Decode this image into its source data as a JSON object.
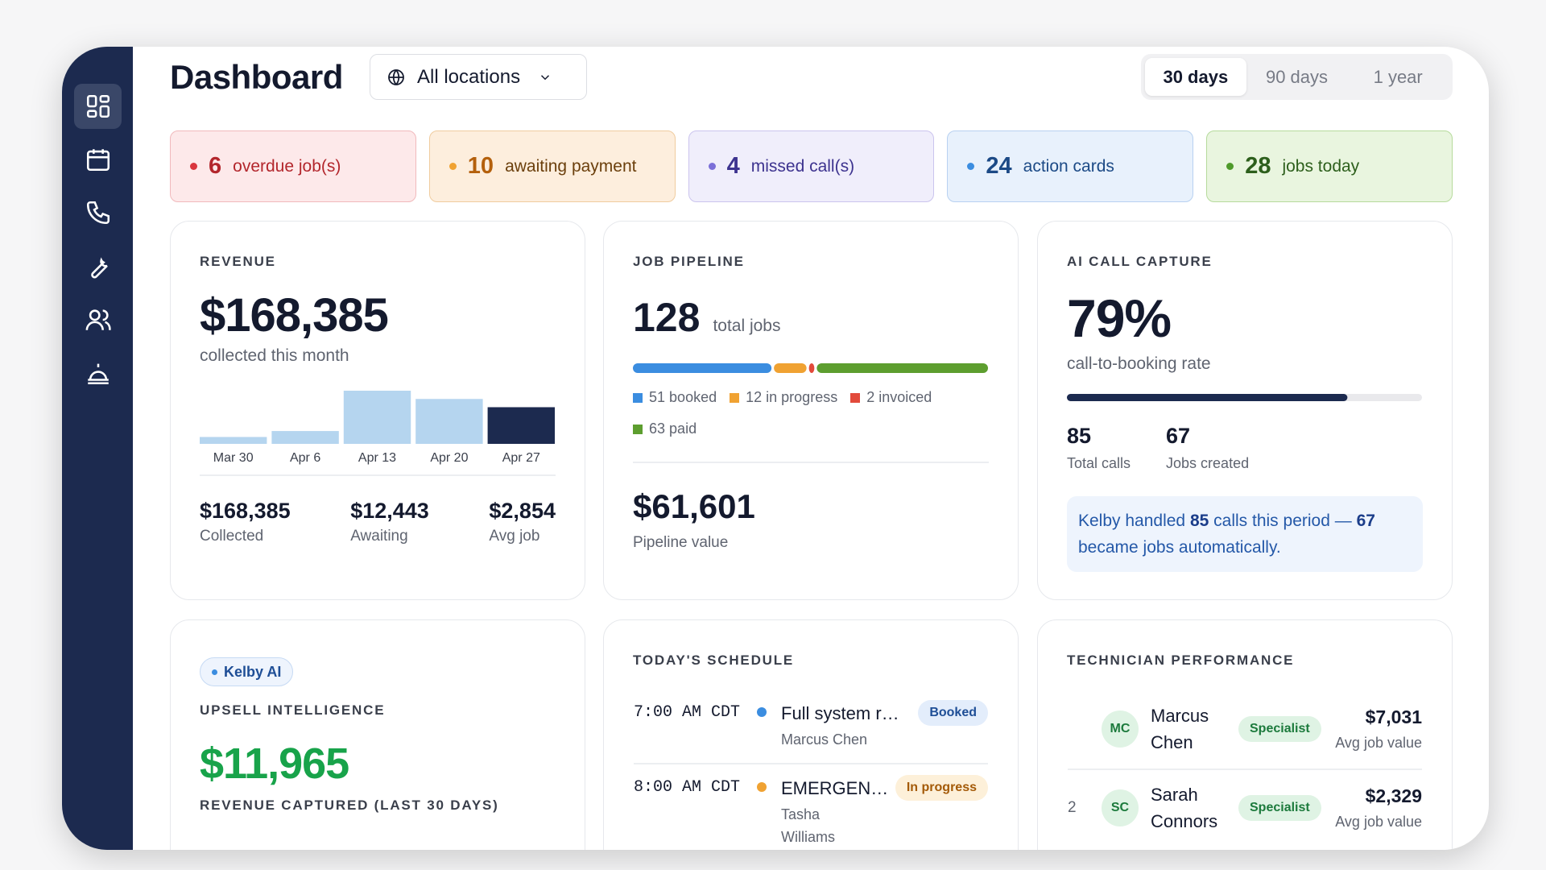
{
  "header": {
    "title": "Dashboard",
    "location": "All locations",
    "ranges": [
      "30 days",
      "90 days",
      "1 year"
    ]
  },
  "alerts": [
    {
      "count": 6,
      "label": "overdue job(s)"
    },
    {
      "count": 10,
      "label": "awaiting payment"
    },
    {
      "count": 4,
      "label": "missed call(s)"
    },
    {
      "count": 24,
      "label": "action cards"
    },
    {
      "count": 28,
      "label": "jobs today"
    }
  ],
  "revenue": {
    "heading": "REVENUE",
    "amount": "$168,385",
    "caption": "collected this month",
    "chart": {
      "type": "bar",
      "categories": [
        "Mar 30",
        "Apr 6",
        "Apr 13",
        "Apr 20",
        "Apr 27"
      ],
      "values": [
        7500,
        14000,
        58000,
        49000,
        40000
      ],
      "colors": [
        "#b5d5ef",
        "#b5d5ef",
        "#b5d5ef",
        "#b5d5ef",
        "#1c2a4f"
      ]
    },
    "stats": [
      {
        "value": "$168,385",
        "label": "Collected"
      },
      {
        "value": "$12,443",
        "label": "Awaiting"
      },
      {
        "value": "$2,854",
        "label": "Avg job"
      }
    ]
  },
  "pipeline": {
    "heading": "JOB PIPELINE",
    "total": 128,
    "total_label": "total jobs",
    "chart": {
      "type": "stacked_bar",
      "series": [
        {
          "name": "booked",
          "value": 51,
          "color": "#3b8de0"
        },
        {
          "name": "in progress",
          "value": 12,
          "color": "#f0a232"
        },
        {
          "name": "invoiced",
          "value": 2,
          "color": "#e24a3b"
        },
        {
          "name": "paid",
          "value": 63,
          "color": "#5d9e2f"
        }
      ]
    },
    "pipeline_value": "$61,601",
    "pipeline_caption": "Pipeline value"
  },
  "ai": {
    "heading": "AI CALL CAPTURE",
    "rate": {
      "value": 79,
      "label": "79%",
      "xlim": [
        0,
        100
      ]
    },
    "caption": "call-to-booking rate",
    "total_calls": 85,
    "total_calls_label": "Total calls",
    "jobs_created": 67,
    "jobs_created_label": "Jobs created",
    "note": [
      "Kelby handled",
      "calls this period —",
      "became jobs automatically."
    ]
  },
  "upsell": {
    "badge": "Kelby AI",
    "heading": "UPSELL INTELLIGENCE",
    "amount": "$11,965",
    "caption": "REVENUE CAPTURED (LAST 30 DAYS)"
  },
  "schedule": {
    "heading": "TODAY'S SCHEDULE",
    "items": [
      {
        "time": "7:00 AM CDT",
        "title": "Full system r…",
        "tech": "Marcus Chen",
        "status": "Booked"
      },
      {
        "time": "8:00 AM CDT",
        "title": "EMERGEN…",
        "tech": "Tasha Williams",
        "status": "In progress"
      }
    ]
  },
  "technicians": {
    "heading": "TECHNICIAN PERFORMANCE",
    "items": [
      {
        "initials": "MC",
        "name": "Marcus Chen",
        "badge": "Specialist",
        "value": "$7,031",
        "value_caption": "Avg job value"
      },
      {
        "rank": "2",
        "initials": "SC",
        "name": "Sarah Connors",
        "badge": "Specialist",
        "value": "$2,329",
        "value_caption": "Avg job value"
      }
    ]
  }
}
